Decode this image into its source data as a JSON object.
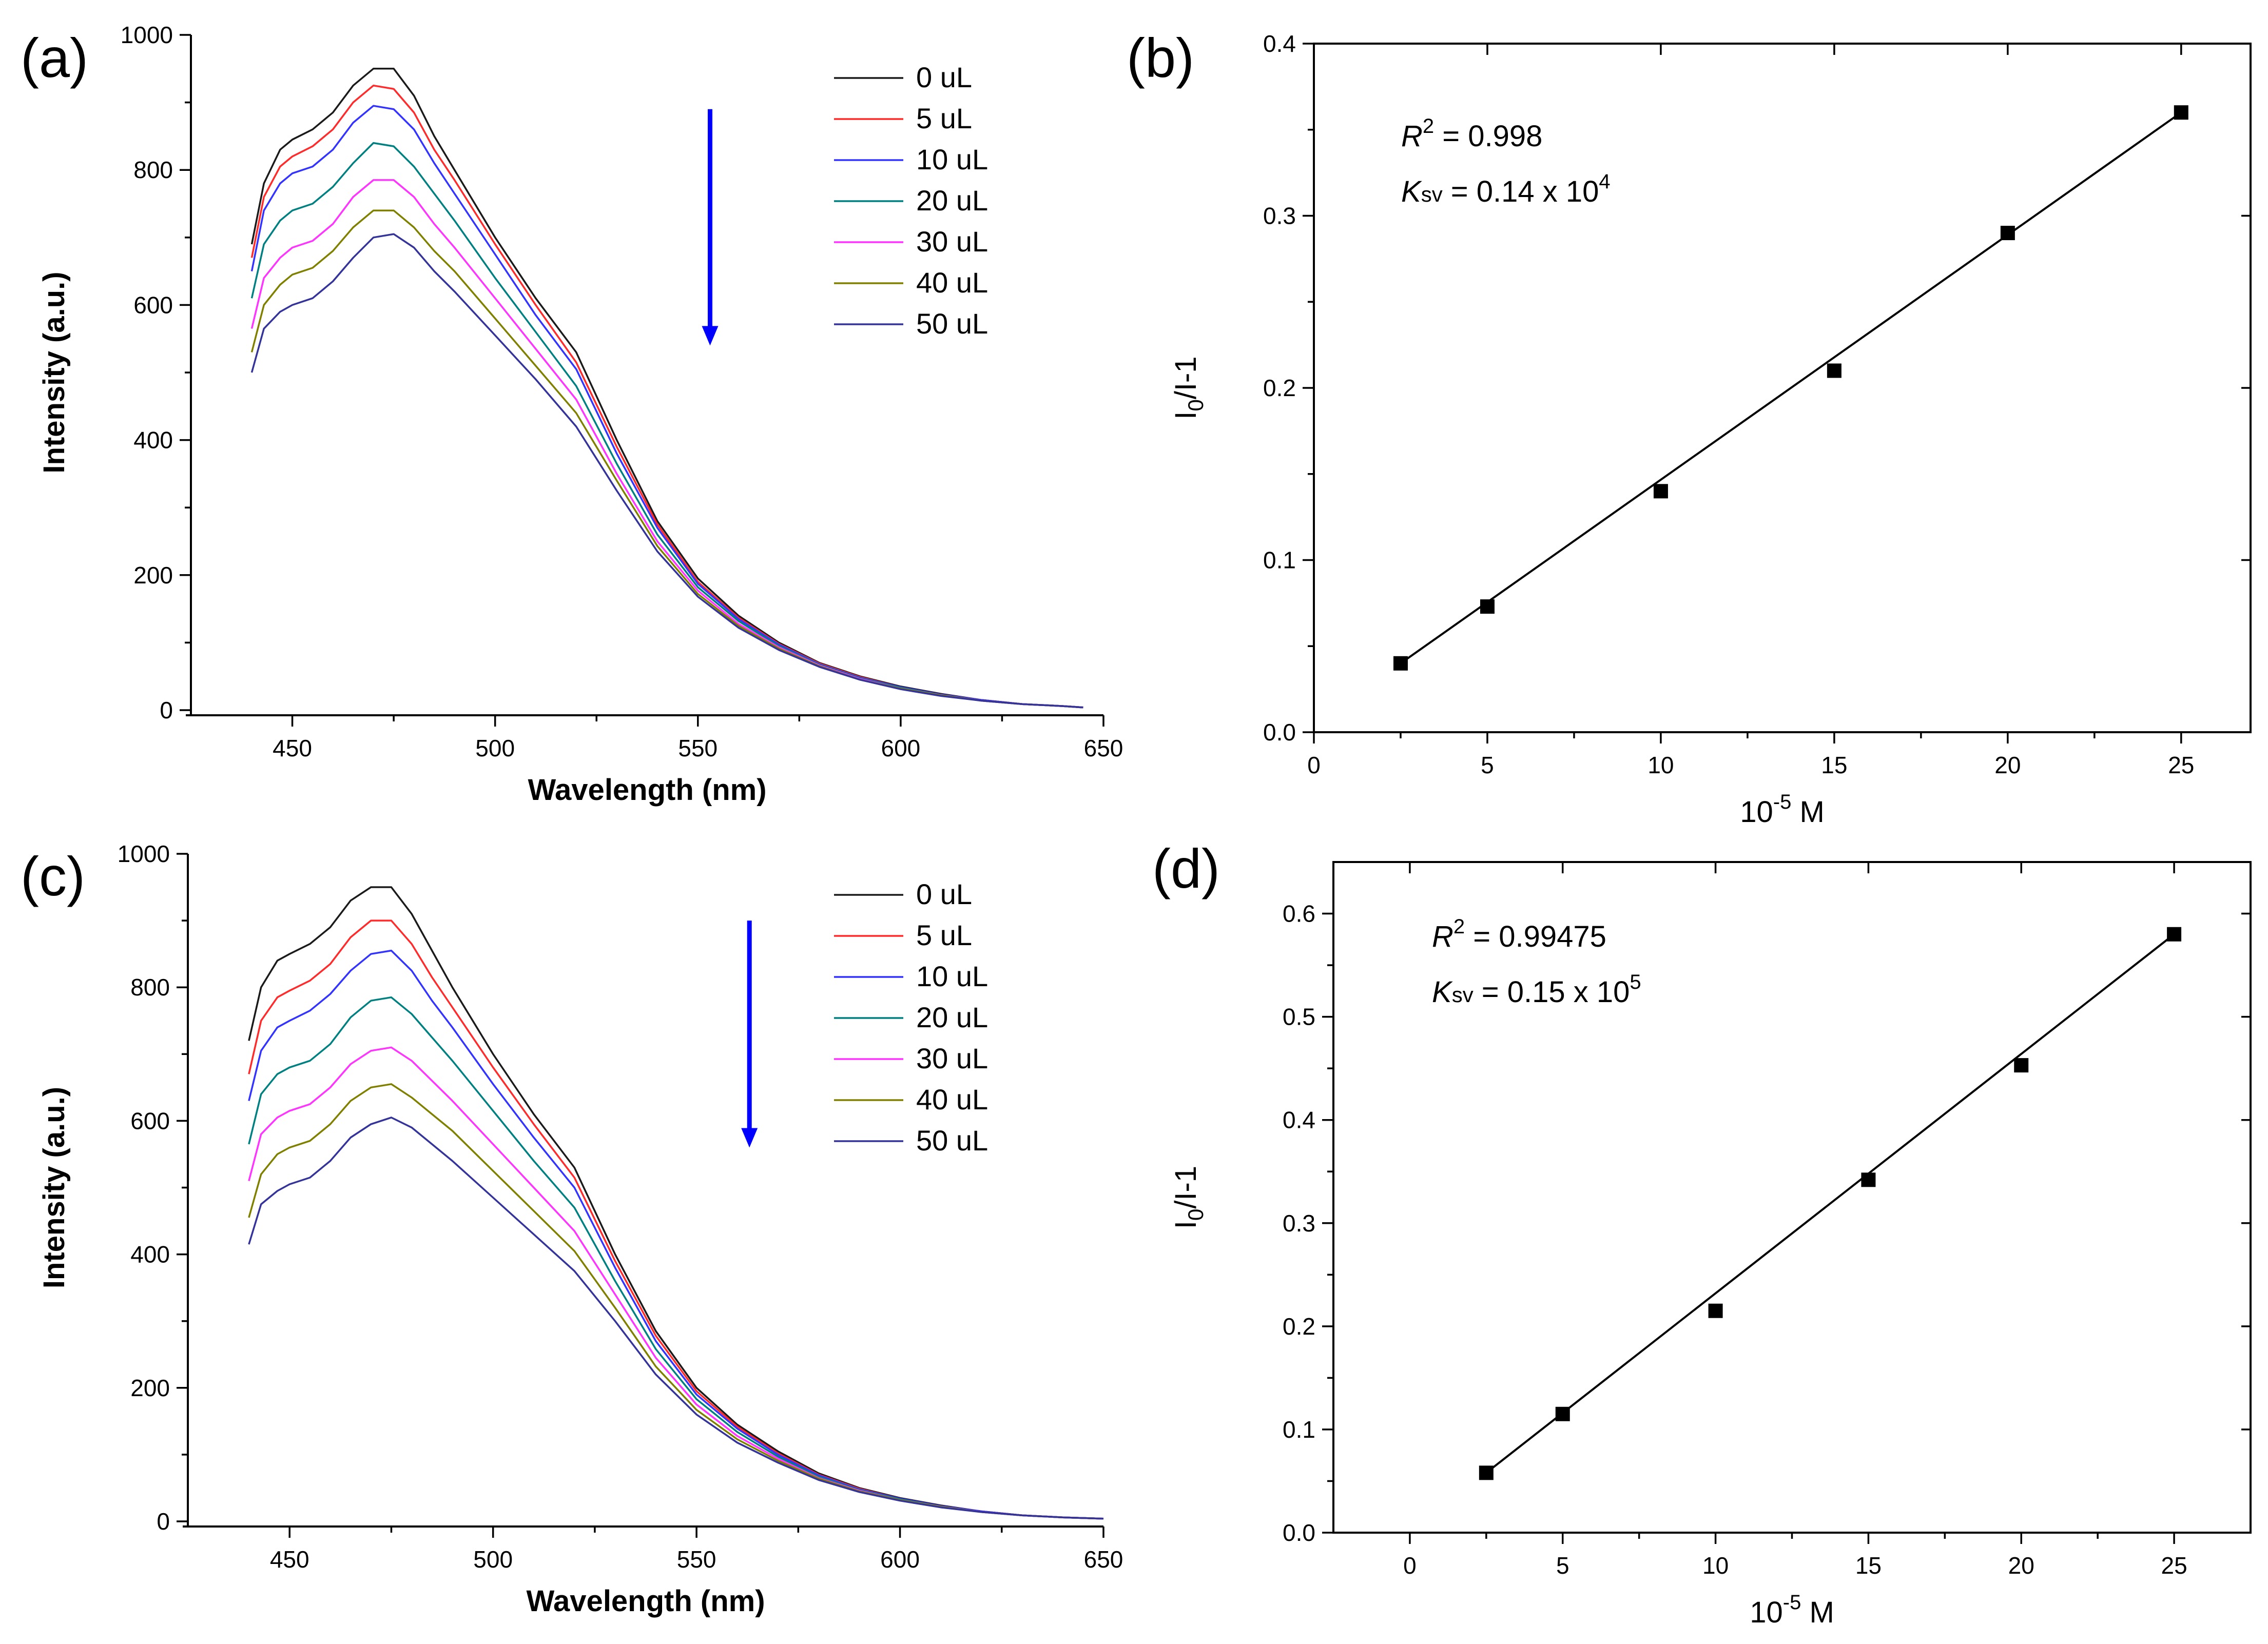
{
  "chart_data": [
    {
      "panel": "(a)",
      "type": "line",
      "xlabel": "Wavelength (nm)",
      "ylabel": "Intensity (a.u.)",
      "xlim": [
        425,
        650
      ],
      "ylim": [
        0,
        1000
      ],
      "xticks": [
        450,
        500,
        550,
        600,
        650
      ],
      "yticks": [
        0,
        200,
        400,
        600,
        800,
        1000
      ],
      "legend_position": "top-right",
      "arrow": {
        "x": 553,
        "y_from": 890,
        "y_to": 540,
        "color": "#0000ff"
      },
      "x": [
        440,
        443,
        447,
        450,
        455,
        460,
        465,
        470,
        475,
        480,
        485,
        490,
        500,
        510,
        520,
        530,
        540,
        550,
        560,
        570,
        580,
        590,
        600,
        610,
        620,
        630,
        640,
        645
      ],
      "series": [
        {
          "name": "0 uL",
          "color": "#1a1a1a",
          "values": [
            690,
            780,
            830,
            845,
            860,
            885,
            925,
            950,
            950,
            910,
            850,
            800,
            700,
            610,
            530,
            400,
            280,
            195,
            140,
            100,
            70,
            50,
            35,
            24,
            15,
            9,
            6,
            4
          ]
        },
        {
          "name": "5 uL",
          "color": "#ff2a2a",
          "values": [
            670,
            760,
            805,
            820,
            835,
            860,
            900,
            925,
            920,
            885,
            830,
            785,
            690,
            600,
            515,
            390,
            275,
            190,
            137,
            98,
            69,
            49,
            34,
            23,
            15,
            9,
            6,
            4
          ]
        },
        {
          "name": "10 uL",
          "color": "#3333ff",
          "values": [
            650,
            740,
            780,
            795,
            805,
            830,
            870,
            895,
            890,
            860,
            810,
            765,
            675,
            585,
            505,
            380,
            270,
            187,
            135,
            97,
            68,
            48,
            34,
            23,
            15,
            9,
            6,
            4
          ]
        },
        {
          "name": "20 uL",
          "color": "#008080",
          "values": [
            610,
            690,
            725,
            740,
            750,
            775,
            810,
            840,
            835,
            805,
            765,
            725,
            640,
            560,
            480,
            365,
            260,
            182,
            132,
            95,
            67,
            47,
            33,
            22,
            14,
            9,
            6,
            4
          ]
        },
        {
          "name": "30 uL",
          "color": "#ff33ff",
          "values": [
            565,
            640,
            670,
            685,
            695,
            720,
            760,
            785,
            785,
            760,
            720,
            685,
            610,
            535,
            460,
            350,
            250,
            177,
            128,
            93,
            66,
            46,
            32,
            22,
            14,
            9,
            6,
            4
          ]
        },
        {
          "name": "40 uL",
          "color": "#808000",
          "values": [
            530,
            600,
            630,
            645,
            655,
            680,
            715,
            740,
            740,
            715,
            680,
            650,
            580,
            510,
            440,
            340,
            243,
            172,
            125,
            91,
            65,
            45,
            32,
            22,
            14,
            9,
            6,
            4
          ]
        },
        {
          "name": "50 uL",
          "color": "#333399",
          "values": [
            500,
            565,
            590,
            600,
            610,
            635,
            670,
            700,
            705,
            685,
            650,
            620,
            555,
            490,
            420,
            325,
            235,
            168,
            122,
            89,
            64,
            45,
            31,
            21,
            14,
            9,
            6,
            4
          ]
        }
      ]
    },
    {
      "panel": "(b)",
      "type": "scatter",
      "xlabel": "10",
      "xlabel_sup": "-5",
      "xlabel_suffix": " M",
      "ylabel_main": "I",
      "ylabel_sub": "0",
      "ylabel_suffix": "/I-1",
      "xlim": [
        0,
        27
      ],
      "ylim": [
        0,
        0.4
      ],
      "xticks": [
        0,
        5,
        10,
        15,
        20,
        25
      ],
      "yticks": [
        0.0,
        0.1,
        0.2,
        0.3,
        0.4
      ],
      "xtick_labels": [
        "0",
        "5",
        "10",
        "15",
        "20",
        "25"
      ],
      "ytick_labels": [
        "0.0",
        "0.1",
        "0.2",
        "0.3",
        "0.4"
      ],
      "x": [
        2.5,
        5,
        10,
        15,
        20,
        25
      ],
      "y": [
        0.04,
        0.073,
        0.14,
        0.21,
        0.29,
        0.36
      ],
      "fit_line": {
        "x": [
          2.5,
          25
        ],
        "y": [
          0.04,
          0.36
        ]
      },
      "annotations": {
        "r2_label": "R",
        "r2_sup": "2",
        "r2_value": " = 0.998",
        "ksv_label": "K",
        "ksv_sub": "sv",
        "ksv_value": " = 0.14 x 10",
        "ksv_exp": "4"
      }
    },
    {
      "panel": "(c)",
      "type": "line",
      "xlabel": "Wavelength (nm)",
      "ylabel": "Intensity (a.u.)",
      "xlim": [
        425,
        650
      ],
      "ylim": [
        0,
        1000
      ],
      "xticks": [
        450,
        500,
        550,
        600,
        650
      ],
      "yticks": [
        0,
        200,
        400,
        600,
        800,
        1000
      ],
      "legend_position": "top-right",
      "arrow": {
        "x": 563,
        "y_from": 900,
        "y_to": 560,
        "color": "#0000ff"
      },
      "x": [
        440,
        443,
        447,
        450,
        455,
        460,
        465,
        470,
        475,
        480,
        485,
        490,
        500,
        510,
        520,
        530,
        540,
        550,
        560,
        570,
        580,
        590,
        600,
        610,
        620,
        630,
        640,
        650
      ],
      "series": [
        {
          "name": "0 uL",
          "color": "#1a1a1a",
          "values": [
            720,
            800,
            840,
            850,
            865,
            890,
            930,
            950,
            950,
            910,
            855,
            800,
            700,
            610,
            530,
            400,
            285,
            200,
            145,
            105,
            72,
            50,
            35,
            24,
            15,
            9,
            6,
            4
          ]
        },
        {
          "name": "5 uL",
          "color": "#ff2a2a",
          "values": [
            670,
            750,
            785,
            795,
            810,
            835,
            875,
            900,
            900,
            865,
            815,
            770,
            680,
            595,
            515,
            390,
            278,
            195,
            142,
            102,
            70,
            49,
            34,
            23,
            15,
            9,
            6,
            4
          ]
        },
        {
          "name": "10 uL",
          "color": "#3333ff",
          "values": [
            630,
            705,
            740,
            750,
            765,
            790,
            825,
            850,
            855,
            825,
            780,
            740,
            655,
            575,
            500,
            380,
            270,
            190,
            139,
            100,
            69,
            48,
            34,
            23,
            15,
            9,
            6,
            4
          ]
        },
        {
          "name": "20 uL",
          "color": "#008080",
          "values": [
            565,
            640,
            670,
            680,
            690,
            715,
            755,
            780,
            785,
            760,
            725,
            690,
            615,
            540,
            470,
            360,
            258,
            183,
            134,
            97,
            67,
            47,
            33,
            22,
            14,
            9,
            6,
            4
          ]
        },
        {
          "name": "30 uL",
          "color": "#ff33ff",
          "values": [
            510,
            580,
            605,
            615,
            625,
            650,
            685,
            705,
            710,
            690,
            660,
            630,
            565,
            500,
            435,
            340,
            245,
            175,
            128,
            94,
            65,
            46,
            32,
            22,
            14,
            9,
            6,
            4
          ]
        },
        {
          "name": "40 uL",
          "color": "#808000",
          "values": [
            455,
            520,
            550,
            560,
            570,
            595,
            630,
            650,
            655,
            635,
            610,
            585,
            525,
            465,
            405,
            320,
            232,
            167,
            123,
            91,
            64,
            45,
            32,
            22,
            14,
            9,
            6,
            4
          ]
        },
        {
          "name": "50 uL",
          "color": "#333399",
          "values": [
            415,
            475,
            495,
            505,
            515,
            540,
            575,
            595,
            605,
            590,
            565,
            540,
            485,
            430,
            375,
            300,
            220,
            160,
            118,
            88,
            62,
            44,
            31,
            21,
            14,
            9,
            6,
            4
          ]
        }
      ]
    },
    {
      "panel": "(d)",
      "type": "scatter",
      "xlabel": "10",
      "xlabel_sup": "-5",
      "xlabel_suffix": " M",
      "ylabel_main": "I",
      "ylabel_sub": "0",
      "ylabel_suffix": "/I-1",
      "xlim": [
        -2.5,
        27.5
      ],
      "ylim": [
        0,
        0.65
      ],
      "xticks": [
        0,
        5,
        10,
        15,
        20,
        25
      ],
      "yticks": [
        0.0,
        0.1,
        0.2,
        0.3,
        0.4,
        0.5,
        0.6
      ],
      "xtick_labels": [
        "0",
        "5",
        "10",
        "15",
        "20",
        "25"
      ],
      "ytick_labels": [
        "0.0",
        "0.1",
        "0.2",
        "0.3",
        "0.4",
        "0.5",
        "0.6"
      ],
      "x": [
        2.5,
        5,
        10,
        15,
        20,
        25
      ],
      "y": [
        0.058,
        0.115,
        0.215,
        0.342,
        0.453,
        0.58
      ],
      "fit_line": {
        "x": [
          2.5,
          25
        ],
        "y": [
          0.058,
          0.58
        ]
      },
      "annotations": {
        "r2_label": "R",
        "r2_sup": "2",
        "r2_value": " = 0.99475",
        "ksv_label": "K",
        "ksv_sub": "sv",
        "ksv_value": " = 0.15 x 10",
        "ksv_exp": "5"
      }
    }
  ]
}
